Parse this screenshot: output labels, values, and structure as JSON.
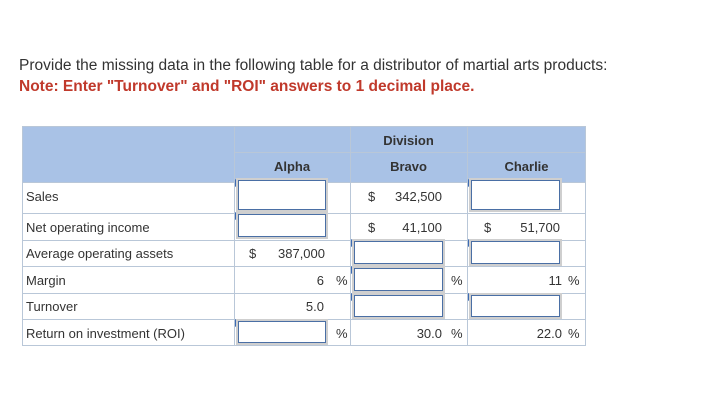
{
  "instructions": {
    "line1": "Provide the missing data in the following table for a distributor of martial arts products:",
    "note": "Note: Enter \"Turnover\" and \"ROI\" answers to 1 decimal place."
  },
  "table": {
    "group_header": "Division",
    "columns": [
      "Alpha",
      "Bravo",
      "Charlie"
    ],
    "rows": [
      "Sales",
      "Net operating income",
      "Average operating assets",
      "Margin",
      "Turnover",
      "Return on investment (ROI)"
    ],
    "cells": {
      "bravo_sales": "342,500",
      "bravo_noi": "41,100",
      "charlie_noi": "51,700",
      "alpha_assets": "387,000",
      "alpha_margin": "6",
      "charlie_margin": "11",
      "alpha_turnover": "5.0",
      "bravo_roi": "30.0",
      "charlie_roi": "22.0"
    },
    "symbols": {
      "dollar": "$",
      "percent": "%"
    }
  }
}
